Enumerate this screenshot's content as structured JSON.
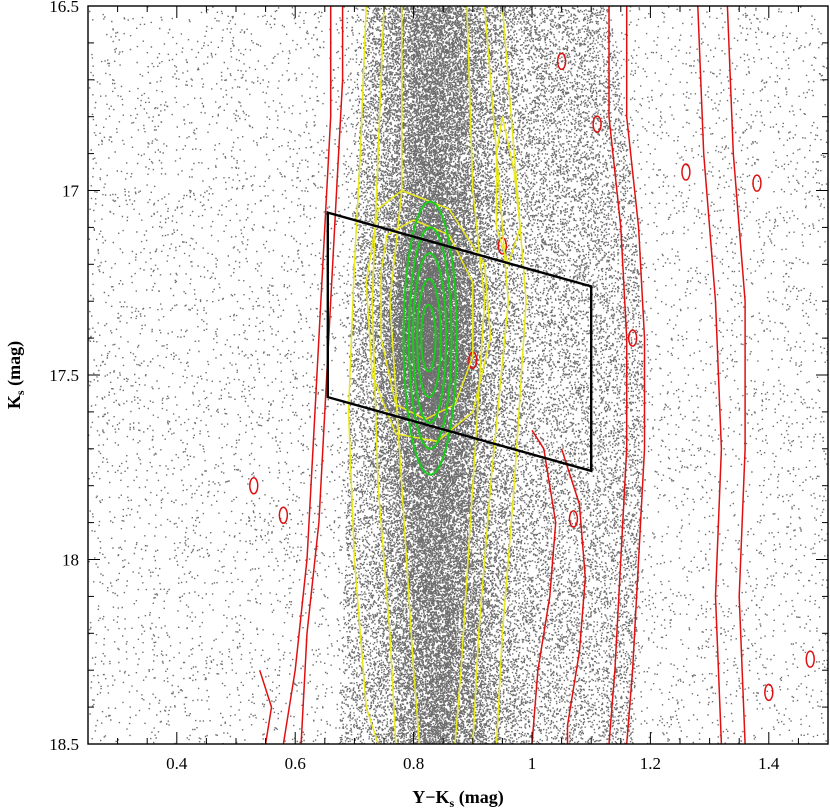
{
  "chart_data": {
    "type": "scatter",
    "title": "",
    "xlabel": "Y−K",
    "xlabel_sub": "s",
    "xlabel_unit": " (mag)",
    "ylabel": "K",
    "ylabel_sub": "s",
    "ylabel_unit": " (mag)",
    "xlim": [
      0.25,
      1.5
    ],
    "ylim": [
      18.5,
      16.5
    ],
    "y_inverted": true,
    "x_ticks": [
      0.4,
      0.6,
      0.8,
      1,
      1.2,
      1.4
    ],
    "x_tick_labels": [
      "0.4",
      "0.6",
      "0.8",
      "1",
      "1.2",
      "1.4"
    ],
    "x_minor_step": 0.05,
    "y_ticks": [
      16.5,
      17,
      17.5,
      18,
      18.5
    ],
    "y_tick_labels": [
      "16.5",
      "17",
      "17.5",
      "18",
      "18.5"
    ],
    "y_minor_step": 0.1,
    "grid": false,
    "legend": "none",
    "colors": {
      "points": "#6e6e6e",
      "red_contours": "#e01010",
      "yellow_contours": "#e8e81a",
      "green_contours": "#19cc19",
      "selection_box": "#000000"
    },
    "selection_box": [
      [
        0.655,
        17.06
      ],
      [
        1.1,
        17.26
      ],
      [
        1.1,
        17.76
      ],
      [
        0.655,
        17.56
      ]
    ],
    "density": {
      "peak": {
        "x": 0.825,
        "y": 17.4
      },
      "main_sequence": [
        [
          0.83,
          16.5
        ],
        [
          0.835,
          16.9
        ],
        [
          0.83,
          17.4
        ],
        [
          0.84,
          18.0
        ],
        [
          0.845,
          18.5
        ]
      ],
      "blue_edge": [
        [
          0.72,
          16.5
        ],
        [
          0.7,
          17.0
        ],
        [
          0.69,
          17.6
        ],
        [
          0.68,
          18.2
        ],
        [
          0.67,
          18.5
        ]
      ],
      "red_edge": [
        [
          1.13,
          16.5
        ],
        [
          1.17,
          17.0
        ],
        [
          1.19,
          17.5
        ],
        [
          1.18,
          18.0
        ],
        [
          1.17,
          18.5
        ]
      ]
    },
    "green_contours": [
      {
        "cx": 0.828,
        "cy": 17.4,
        "rx": 0.045,
        "ry": 0.37
      },
      {
        "cx": 0.828,
        "cy": 17.4,
        "rx": 0.036,
        "ry": 0.3
      },
      {
        "cx": 0.827,
        "cy": 17.4,
        "rx": 0.028,
        "ry": 0.23
      },
      {
        "cx": 0.826,
        "cy": 17.4,
        "rx": 0.02,
        "ry": 0.16
      },
      {
        "cx": 0.825,
        "cy": 17.4,
        "rx": 0.012,
        "ry": 0.09
      }
    ],
    "yellow_contours": [
      [
        [
          0.72,
          16.5
        ],
        [
          0.71,
          16.9
        ],
        [
          0.7,
          17.2
        ],
        [
          0.69,
          17.6
        ],
        [
          0.7,
          18.0
        ],
        [
          0.72,
          18.4
        ],
        [
          0.74,
          18.5
        ]
      ],
      [
        [
          0.95,
          16.5
        ],
        [
          0.97,
          16.9
        ],
        [
          0.99,
          17.3
        ],
        [
          0.97,
          17.8
        ],
        [
          0.95,
          18.2
        ],
        [
          0.94,
          18.5
        ]
      ],
      [
        [
          0.75,
          16.5
        ],
        [
          0.74,
          16.9
        ],
        [
          0.73,
          17.3
        ],
        [
          0.74,
          17.8
        ],
        [
          0.76,
          18.2
        ],
        [
          0.77,
          18.5
        ]
      ],
      [
        [
          0.92,
          16.5
        ],
        [
          0.94,
          16.9
        ],
        [
          0.96,
          17.3
        ],
        [
          0.93,
          17.8
        ],
        [
          0.91,
          18.2
        ],
        [
          0.9,
          18.5
        ]
      ],
      [
        [
          0.78,
          16.5
        ],
        [
          0.78,
          17.0
        ],
        [
          0.76,
          17.3
        ],
        [
          0.78,
          17.8
        ],
        [
          0.8,
          18.3
        ],
        [
          0.81,
          18.5
        ]
      ],
      [
        [
          0.89,
          16.5
        ],
        [
          0.9,
          17.0
        ],
        [
          0.92,
          17.3
        ],
        [
          0.9,
          17.8
        ],
        [
          0.88,
          18.3
        ],
        [
          0.87,
          18.5
        ]
      ],
      [
        [
          0.74,
          17.05
        ],
        [
          0.78,
          17.0
        ],
        [
          0.86,
          17.05
        ],
        [
          0.92,
          17.2
        ],
        [
          0.93,
          17.4
        ],
        [
          0.9,
          17.6
        ],
        [
          0.84,
          17.68
        ],
        [
          0.77,
          17.66
        ],
        [
          0.73,
          17.5
        ],
        [
          0.72,
          17.25
        ],
        [
          0.74,
          17.05
        ]
      ],
      [
        [
          0.755,
          17.12
        ],
        [
          0.8,
          17.08
        ],
        [
          0.86,
          17.12
        ],
        [
          0.9,
          17.25
        ],
        [
          0.9,
          17.45
        ],
        [
          0.87,
          17.58
        ],
        [
          0.82,
          17.62
        ],
        [
          0.77,
          17.58
        ],
        [
          0.745,
          17.4
        ],
        [
          0.745,
          17.22
        ],
        [
          0.755,
          17.12
        ]
      ],
      [
        [
          0.95,
          16.8
        ],
        [
          0.97,
          16.95
        ],
        [
          0.98,
          17.1
        ],
        [
          0.96,
          17.2
        ],
        [
          0.94,
          17.1
        ],
        [
          0.94,
          16.9
        ],
        [
          0.95,
          16.8
        ]
      ]
    ],
    "red_contours": [
      [
        [
          0.61,
          18.5
        ],
        [
          0.62,
          18.2
        ],
        [
          0.64,
          17.9
        ],
        [
          0.65,
          17.6
        ],
        [
          0.66,
          17.3
        ],
        [
          0.67,
          17.0
        ],
        [
          0.68,
          16.7
        ],
        [
          0.68,
          16.5
        ]
      ],
      [
        [
          0.58,
          18.5
        ],
        [
          0.6,
          18.3
        ],
        [
          0.62,
          18.0
        ],
        [
          0.63,
          17.7
        ],
        [
          0.64,
          17.4
        ],
        [
          0.65,
          17.1
        ],
        [
          0.66,
          16.8
        ],
        [
          0.66,
          16.5
        ]
      ],
      [
        [
          1.13,
          16.5
        ],
        [
          1.13,
          16.8
        ],
        [
          1.15,
          17.1
        ],
        [
          1.16,
          17.4
        ],
        [
          1.16,
          17.7
        ],
        [
          1.15,
          18.0
        ],
        [
          1.14,
          18.3
        ],
        [
          1.13,
          18.5
        ]
      ],
      [
        [
          1.16,
          16.5
        ],
        [
          1.16,
          16.8
        ],
        [
          1.18,
          17.1
        ],
        [
          1.19,
          17.4
        ],
        [
          1.19,
          17.7
        ],
        [
          1.18,
          18.0
        ],
        [
          1.17,
          18.3
        ],
        [
          1.16,
          18.5
        ]
      ],
      [
        [
          1.28,
          16.5
        ],
        [
          1.29,
          16.9
        ],
        [
          1.31,
          17.3
        ],
        [
          1.32,
          17.7
        ],
        [
          1.31,
          18.1
        ],
        [
          1.32,
          18.5
        ]
      ],
      [
        [
          1.33,
          16.5
        ],
        [
          1.34,
          16.9
        ],
        [
          1.36,
          17.3
        ],
        [
          1.36,
          17.7
        ],
        [
          1.35,
          18.1
        ],
        [
          1.36,
          18.5
        ]
      ],
      [
        [
          1.0,
          17.65
        ],
        [
          1.02,
          17.7
        ],
        [
          1.04,
          17.9
        ],
        [
          1.03,
          18.1
        ],
        [
          1.01,
          18.3
        ],
        [
          1.0,
          18.5
        ]
      ],
      [
        [
          1.05,
          17.7
        ],
        [
          1.08,
          17.85
        ],
        [
          1.09,
          18.05
        ],
        [
          1.08,
          18.25
        ],
        [
          1.06,
          18.45
        ],
        [
          1.06,
          18.5
        ]
      ],
      [
        [
          0.54,
          18.3
        ],
        [
          0.56,
          18.4
        ],
        [
          0.55,
          18.5
        ]
      ]
    ],
    "red_blobs": [
      {
        "x": 1.38,
        "y": 16.98
      },
      {
        "x": 1.26,
        "y": 16.95
      },
      {
        "x": 1.05,
        "y": 16.65
      },
      {
        "x": 0.95,
        "y": 17.15
      },
      {
        "x": 1.11,
        "y": 16.82
      },
      {
        "x": 1.4,
        "y": 18.36
      },
      {
        "x": 0.53,
        "y": 17.8
      },
      {
        "x": 0.58,
        "y": 17.88
      },
      {
        "x": 0.9,
        "y": 17.46
      },
      {
        "x": 1.07,
        "y": 17.89
      },
      {
        "x": 1.17,
        "y": 17.4
      },
      {
        "x": 1.47,
        "y": 18.27
      }
    ]
  }
}
